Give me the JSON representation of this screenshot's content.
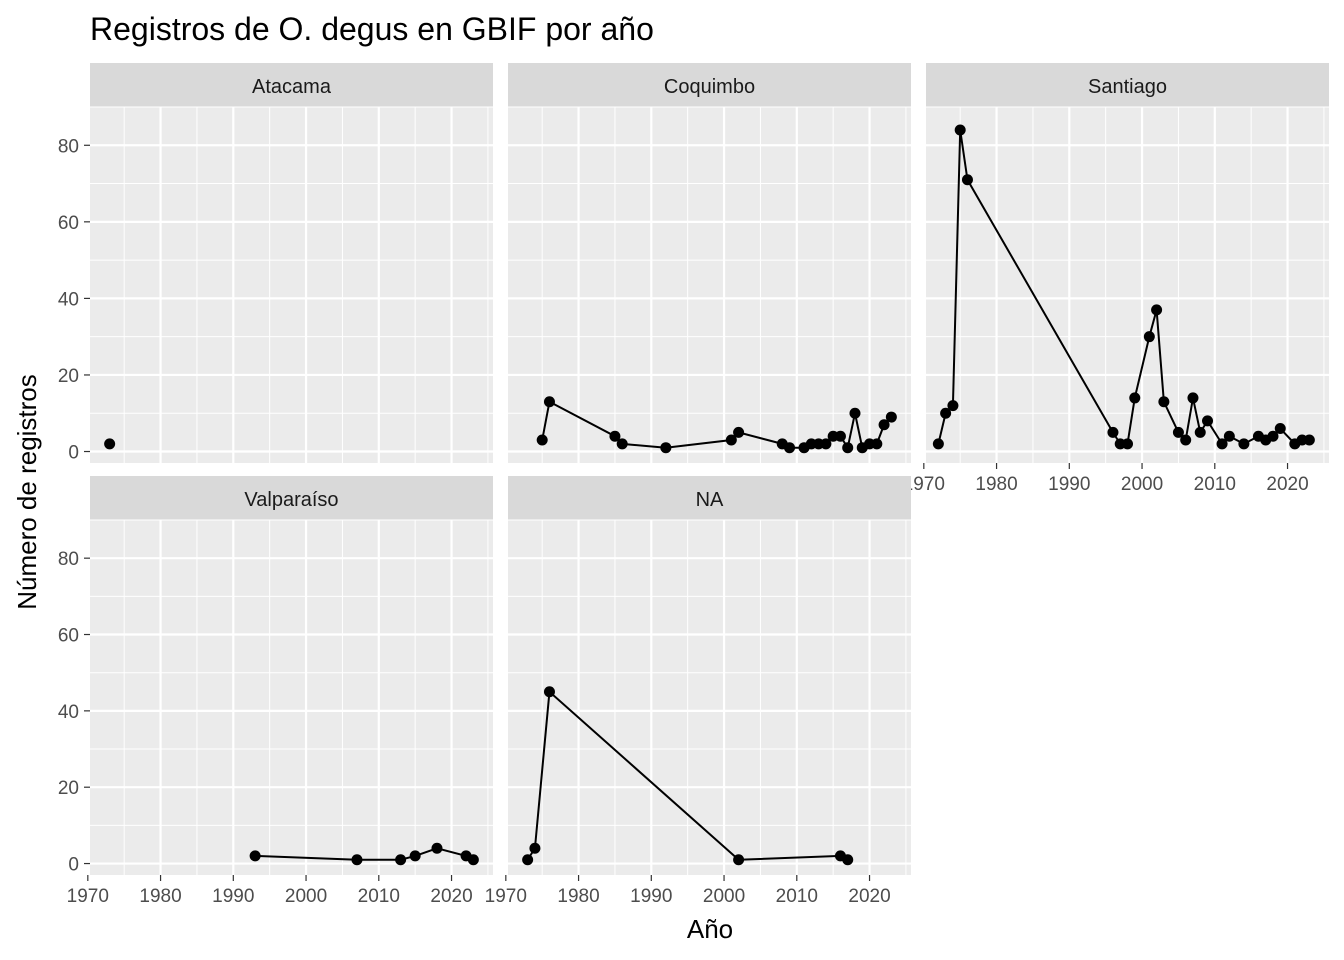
{
  "chart_data": {
    "type": "line",
    "title": "Registros de O. degus en GBIF  por año",
    "xlabel": "Año",
    "ylabel": "Número de registros",
    "xlim": [
      1970.3,
      2025.7
    ],
    "ylim": [
      -3,
      90
    ],
    "x_ticks": [
      1970,
      1980,
      1990,
      2000,
      2010,
      2020
    ],
    "y_ticks": [
      0,
      20,
      40,
      60,
      80
    ],
    "grid": true,
    "legend": "none",
    "colors": {
      "panel_bg": "#EBEBEB",
      "strip_bg": "#D9D9D9",
      "grid": "#FFFFFF",
      "series": "#000000",
      "tick": "#333333"
    },
    "panels": [
      {
        "name": "Atacama",
        "x": [
          1973
        ],
        "y": [
          2
        ]
      },
      {
        "name": "Coquimbo",
        "x": [
          1975,
          1976,
          1985,
          1986,
          1992,
          2001,
          2002,
          2008,
          2009,
          2011,
          2012,
          2013,
          2014,
          2015,
          2016,
          2017,
          2018,
          2019,
          2020,
          2021,
          2022,
          2023
        ],
        "y": [
          3,
          13,
          4,
          2,
          1,
          3,
          5,
          2,
          1,
          1,
          2,
          2,
          2,
          4,
          4,
          1,
          10,
          1,
          2,
          2,
          7,
          9
        ]
      },
      {
        "name": "Santiago",
        "x": [
          1972,
          1973,
          1974,
          1975,
          1976,
          1996,
          1997,
          1998,
          1999,
          2001,
          2002,
          2003,
          2005,
          2006,
          2007,
          2008,
          2009,
          2011,
          2012,
          2014,
          2016,
          2017,
          2018,
          2019,
          2021,
          2022,
          2023
        ],
        "y": [
          2,
          10,
          12,
          84,
          71,
          5,
          2,
          2,
          14,
          30,
          37,
          13,
          5,
          3,
          14,
          5,
          8,
          2,
          4,
          2,
          4,
          3,
          4,
          6,
          2,
          3,
          3
        ]
      },
      {
        "name": "Valparaíso",
        "x": [
          1993,
          2007,
          2013,
          2015,
          2018,
          2022,
          2023
        ],
        "y": [
          2,
          1,
          1,
          2,
          4,
          2,
          1
        ]
      },
      {
        "name": "NA",
        "x": [
          1973,
          1974,
          1976,
          2002,
          2016,
          2017
        ],
        "y": [
          1,
          4,
          45,
          1,
          2,
          1
        ]
      }
    ]
  }
}
